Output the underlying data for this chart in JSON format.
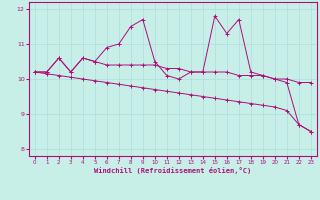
{
  "xlabel": "Windchill (Refroidissement éolien,°C)",
  "bg_color": "#c8eee8",
  "grid_color": "#aadddd",
  "line_color": "#aa1177",
  "x": [
    0,
    1,
    2,
    3,
    4,
    5,
    6,
    7,
    8,
    9,
    10,
    11,
    12,
    13,
    14,
    15,
    16,
    17,
    18,
    19,
    20,
    21,
    22,
    23
  ],
  "line1": [
    10.2,
    10.2,
    10.6,
    10.2,
    10.6,
    10.5,
    10.9,
    11.0,
    11.5,
    11.7,
    10.5,
    10.1,
    10.0,
    10.2,
    10.2,
    11.8,
    11.3,
    11.7,
    10.2,
    10.1,
    10.0,
    9.9,
    8.7,
    8.5
  ],
  "line2": [
    10.2,
    10.2,
    10.6,
    10.2,
    10.6,
    10.5,
    10.4,
    10.4,
    10.4,
    10.4,
    10.4,
    10.3,
    10.3,
    10.2,
    10.2,
    10.2,
    10.2,
    10.1,
    10.1,
    10.1,
    10.0,
    10.0,
    9.9,
    9.9
  ],
  "line3": [
    10.2,
    10.15,
    10.1,
    10.05,
    10.0,
    9.95,
    9.9,
    9.85,
    9.8,
    9.75,
    9.7,
    9.65,
    9.6,
    9.55,
    9.5,
    9.45,
    9.4,
    9.35,
    9.3,
    9.25,
    9.2,
    9.1,
    8.7,
    8.5
  ],
  "ylim": [
    7.8,
    12.2
  ],
  "xlim": [
    -0.5,
    23.5
  ],
  "yticks": [
    8,
    9,
    10,
    11,
    12
  ],
  "xticks": [
    0,
    1,
    2,
    3,
    4,
    5,
    6,
    7,
    8,
    9,
    10,
    11,
    12,
    13,
    14,
    15,
    16,
    17,
    18,
    19,
    20,
    21,
    22,
    23
  ]
}
